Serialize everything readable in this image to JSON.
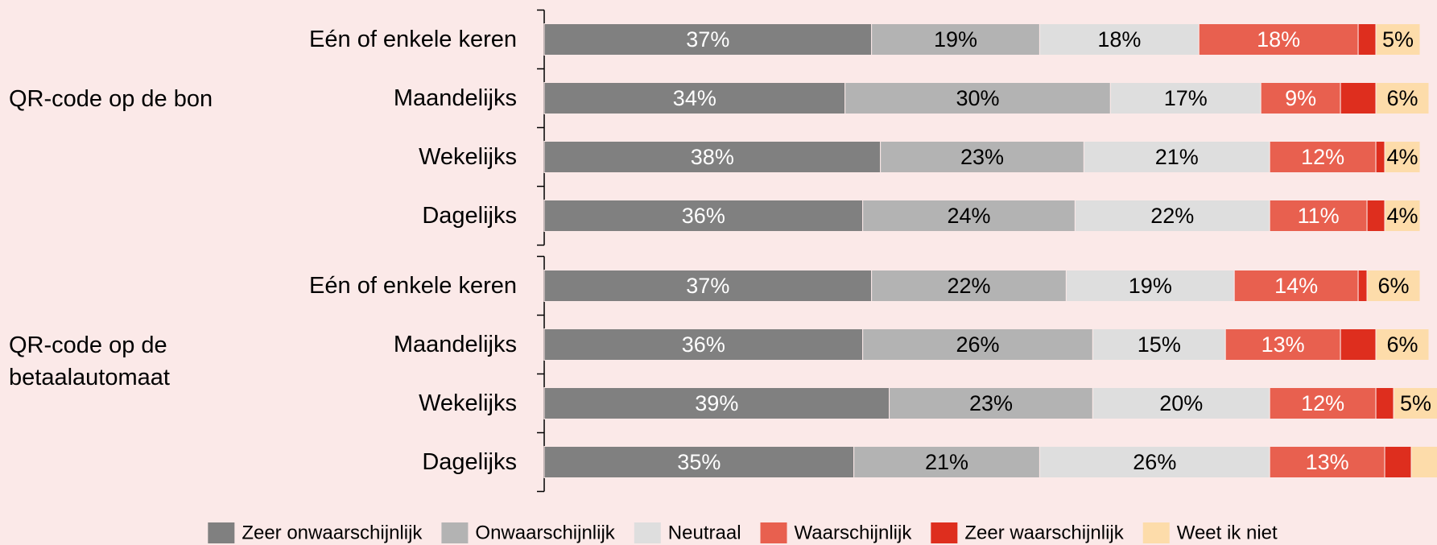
{
  "chart_data": {
    "type": "stacked-bar-horizontal",
    "groups": [
      {
        "name": "QR-code op de bon",
        "categories": [
          "Eén of enkele keren",
          "Maandelijks",
          "Wekelijks",
          "Dagelijks"
        ]
      },
      {
        "name": "QR-code op de betaalautomaat",
        "categories": [
          "Eén of enkele keren",
          "Maandelijks",
          "Wekelijks",
          "Dagelijks"
        ]
      }
    ],
    "xlim": [
      0,
      100
    ],
    "legend": "bottom",
    "series": [
      {
        "name": "Zeer onwaarschijnlijk",
        "color": "#808080",
        "label_color": "#ffffff",
        "values": [
          37,
          34,
          38,
          36,
          37,
          36,
          39,
          35
        ],
        "value_labels": [
          "37%",
          "34%",
          "38%",
          "36%",
          "37%",
          "36%",
          "39%",
          "35%"
        ]
      },
      {
        "name": "Onwaarschijnlijk",
        "color": "#b3b3b3",
        "label_color": "#000000",
        "values": [
          19,
          30,
          23,
          24,
          22,
          26,
          23,
          21
        ],
        "value_labels": [
          "19%",
          "30%",
          "23%",
          "24%",
          "22%",
          "26%",
          "23%",
          "21%"
        ]
      },
      {
        "name": "Neutraal",
        "color": "#dedede",
        "label_color": "#000000",
        "values": [
          18,
          17,
          21,
          22,
          19,
          15,
          20,
          26
        ],
        "value_labels": [
          "18%",
          "17%",
          "21%",
          "22%",
          "19%",
          "15%",
          "20%",
          "26%"
        ]
      },
      {
        "name": "Waarschijnlijk",
        "color": "#e8604f",
        "label_color": "#ffffff",
        "values": [
          18,
          9,
          12,
          11,
          14,
          13,
          12,
          13
        ],
        "value_labels": [
          "18%",
          "9%",
          "12%",
          "11%",
          "14%",
          "13%",
          "12%",
          "13%"
        ]
      },
      {
        "name": "Zeer waarschijnlijk",
        "color": "#de2e1e",
        "label_color": "#ffffff",
        "values": [
          2,
          4,
          1,
          2,
          1,
          4,
          2,
          3
        ],
        "value_labels": [
          null,
          null,
          null,
          null,
          null,
          null,
          null,
          null
        ]
      },
      {
        "name": "Weet ik niet",
        "color": "#fddcaa",
        "label_color": "#000000",
        "values": [
          5,
          6,
          4,
          4,
          6,
          6,
          5,
          3
        ],
        "value_labels": [
          "5%",
          "6%",
          "4%",
          "4%",
          "6%",
          "6%",
          "5%",
          null
        ]
      }
    ]
  }
}
